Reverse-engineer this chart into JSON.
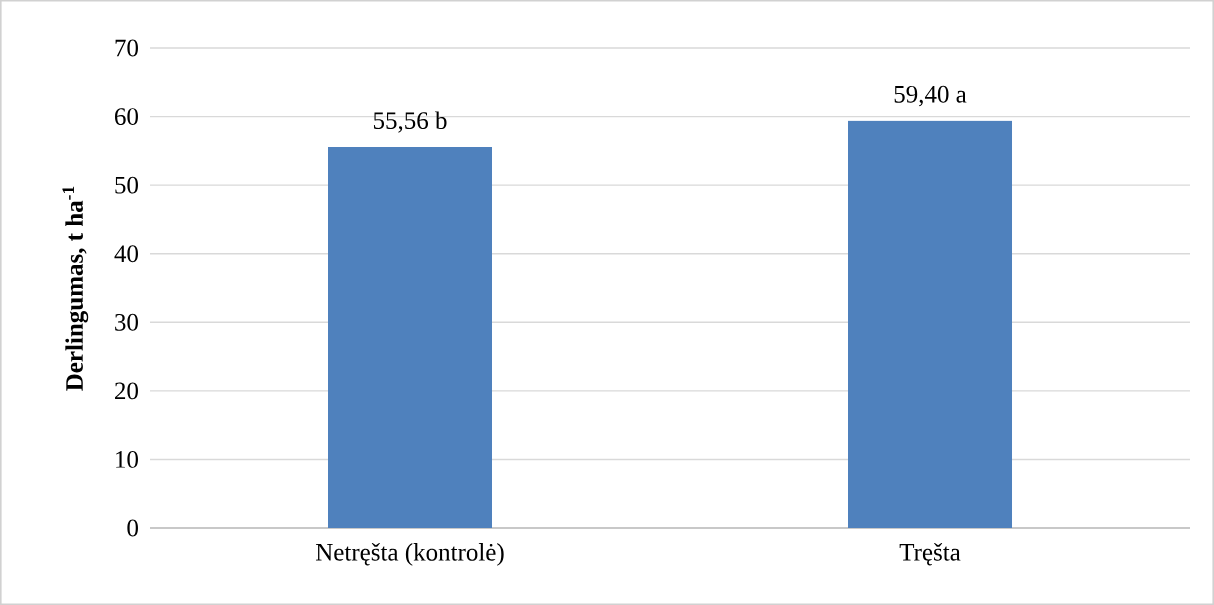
{
  "chart_data": {
    "type": "bar",
    "ylabel": "Derlingumas, t ha$^{-1}$",
    "categories": [
      "Netręšta (kontrolė)",
      "Tręšta"
    ],
    "values": [
      55.56,
      59.4
    ],
    "value_labels": [
      "55,56 b",
      "59,40 a"
    ],
    "color": "#4f81bd",
    "ylim": [
      0,
      70
    ],
    "yticks": [
      0,
      10,
      20,
      30,
      40,
      50,
      60,
      70
    ],
    "grid": "y"
  }
}
